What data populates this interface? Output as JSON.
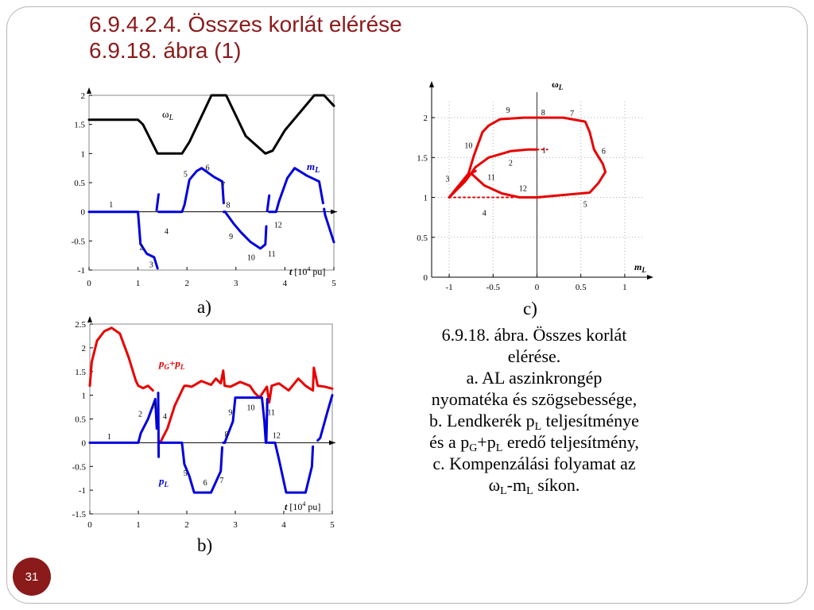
{
  "slide": {
    "title_line1": "6.9.4.2.4. Összes korlát elérése",
    "title_line2": "6.9.18. ábra (1)",
    "page_number": "31"
  },
  "caption": {
    "line1": "6.9.18. ábra. Összes korlát",
    "line2": "elérése.",
    "line3": "a. AL aszinkrongép",
    "line4": "nyomatéka és szögsebessége,",
    "line5_pre": "b. Lendkerék p",
    "line5_sub": "L",
    "line5_post": " teljesítménye",
    "line6_a": "és a p",
    "line6_sub1": "G",
    "line6_b": "+p",
    "line6_sub2": "L",
    "line6_c": " eredő teljesítmény,",
    "line7": "c. Kompenzálási folyamat az",
    "line8_a": "ω",
    "line8_sub1": "L",
    "line8_b": "-m",
    "line8_sub2": "L",
    "line8_c": " síkon."
  },
  "panel_labels": {
    "a": "a)",
    "b": "b)",
    "c": "c)"
  },
  "colors": {
    "accent": "#8b1a1a",
    "blue": "#0000dd",
    "red": "#e80000",
    "black": "#000000"
  },
  "chart_data": [
    {
      "id": "a",
      "type": "line",
      "xlim": [
        0,
        5
      ],
      "ylim": [
        -1,
        2
      ],
      "xticks": [
        0,
        1,
        2,
        3,
        4,
        5
      ],
      "yticks": [
        -1,
        -0.5,
        0,
        0.5,
        1,
        1.5,
        2
      ],
      "xlabel": {
        "main": "t",
        "unit": "[10",
        "sup": "4",
        "unit_end": " pu]"
      },
      "series": [
        {
          "name": "ωL",
          "label_main": "ω",
          "label_sub": "L",
          "color": "#000000",
          "x": [
            0,
            0.55,
            1.0,
            1.1,
            1.4,
            1.9,
            2.05,
            2.5,
            2.8,
            3.2,
            3.6,
            3.75,
            4.0,
            4.6,
            4.8,
            5.0
          ],
          "y": [
            1.58,
            1.58,
            1.58,
            1.5,
            1.0,
            1.0,
            1.2,
            2.0,
            2.0,
            1.3,
            1.0,
            1.05,
            1.4,
            2.0,
            2.0,
            1.82
          ]
        },
        {
          "name": "mL",
          "label_main": "m",
          "label_sub": "L",
          "color": "#0000dd",
          "segments": [
            {
              "x": [
                0,
                0.98
              ],
              "y": [
                0,
                0
              ]
            },
            {
              "x": [
                1.0,
                1.05,
                1.18,
                1.33,
                1.4
              ],
              "y": [
                0,
                -0.55,
                -0.72,
                -0.78,
                -0.97
              ]
            },
            {
              "x": [
                1.38,
                1.42
              ],
              "y": [
                0.03,
                0.3
              ]
            },
            {
              "x": [
                1.42,
                1.9,
                1.95,
                2.05,
                2.2,
                2.3,
                2.55,
                2.72,
                2.75
              ],
              "y": [
                0,
                0,
                0.12,
                0.55,
                0.7,
                0.75,
                0.6,
                0.52,
                0.15
              ]
            },
            {
              "x": [
                2.75,
                2.78
              ],
              "y": [
                0,
                0
              ]
            },
            {
              "x": [
                2.78,
                2.95,
                3.1,
                3.3,
                3.5,
                3.6,
                3.62
              ],
              "y": [
                0,
                -0.2,
                -0.35,
                -0.52,
                -0.63,
                -0.56,
                -0.25
              ]
            },
            {
              "x": [
                3.64,
                3.68
              ],
              "y": [
                0.02,
                0.28
              ]
            },
            {
              "x": [
                3.68,
                3.82,
                3.88,
                4.05,
                4.2,
                4.45,
                4.7,
                4.78
              ],
              "y": [
                0,
                0,
                0.18,
                0.58,
                0.75,
                0.62,
                0.52,
                0.15
              ]
            },
            {
              "x": [
                4.8,
                4.82
              ],
              "y": [
                0.05,
                -0.05
              ]
            },
            {
              "x": [
                4.82,
                5.0
              ],
              "y": [
                -0.05,
                -0.52
              ]
            }
          ]
        }
      ],
      "annotations": [
        {
          "text": "1",
          "x": 0.45,
          "y": 0.08
        },
        {
          "text": "2",
          "x": 1.07,
          "y": -0.65
        },
        {
          "text": "3",
          "x": 1.27,
          "y": -0.95
        },
        {
          "text": "4",
          "x": 1.58,
          "y": -0.38
        },
        {
          "text": "5",
          "x": 1.97,
          "y": 0.6
        },
        {
          "text": "6",
          "x": 2.42,
          "y": 0.71
        },
        {
          "text": "7",
          "x": 2.74,
          "y": 0.42
        },
        {
          "text": "8",
          "x": 2.84,
          "y": 0.07
        },
        {
          "text": "9",
          "x": 2.9,
          "y": -0.47
        },
        {
          "text": "10",
          "x": 3.31,
          "y": -0.83
        },
        {
          "text": "11",
          "x": 3.73,
          "y": -0.77
        },
        {
          "text": "12",
          "x": 3.86,
          "y": -0.27
        }
      ]
    },
    {
      "id": "b",
      "type": "line",
      "xlim": [
        0,
        5
      ],
      "ylim": [
        -1.5,
        2.5
      ],
      "xticks": [
        0,
        1,
        2,
        3,
        4,
        5
      ],
      "yticks": [
        -1.5,
        -1,
        -0.5,
        0,
        0.5,
        1,
        1.5,
        2,
        2.5
      ],
      "xlabel": {
        "main": "t",
        "unit": "[10",
        "sup": "4",
        "unit_end": " pu]"
      },
      "series": [
        {
          "name": "pG+pL",
          "label_main": "p",
          "label_sub": "G",
          "label_mid": "+p",
          "label_sub2": "L",
          "color": "#e80000",
          "segments": [
            {
              "x": [
                0,
                0.04,
                0.15,
                0.3,
                0.45,
                0.62,
                0.8,
                0.95,
                1.0,
                1.1,
                1.2,
                1.3
              ],
              "y": [
                1.2,
                1.7,
                2.15,
                2.35,
                2.42,
                2.3,
                1.8,
                1.3,
                1.2,
                1.15,
                1.2,
                1.1
              ]
            },
            {
              "x": [
                1.45,
                1.6,
                1.75,
                1.9,
                1.95,
                2.0,
                2.1,
                2.3,
                2.5,
                2.6,
                2.7,
                2.75,
                2.78,
                2.9,
                3.1,
                3.3,
                3.4,
                3.5,
                3.65,
                3.7,
                3.75,
                3.9,
                4.1,
                4.3,
                4.45,
                4.6,
                4.62,
                4.7,
                4.85,
                5.0
              ],
              "y": [
                0,
                0.3,
                0.78,
                1.1,
                1.2,
                1.2,
                1.18,
                1.3,
                1.22,
                1.35,
                1.25,
                1.52,
                1.2,
                1.18,
                1.28,
                1.2,
                1.05,
                0.95,
                1.18,
                0.85,
                1.2,
                1.25,
                1.1,
                1.35,
                1.2,
                1.1,
                1.58,
                1.2,
                1.18,
                1.14
              ]
            }
          ]
        },
        {
          "name": "pL",
          "label_main": "p",
          "label_sub": "L",
          "color": "#0000dd",
          "segments": [
            {
              "x": [
                0,
                0.98
              ],
              "y": [
                0,
                0
              ]
            },
            {
              "x": [
                1.0,
                1.05,
                1.2,
                1.35,
                1.38
              ],
              "y": [
                0,
                0.2,
                0.5,
                0.92,
                0.3
              ]
            },
            {
              "x": [
                1.41,
                1.42
              ],
              "y": [
                1.05,
                -0.3
              ]
            },
            {
              "x": [
                1.42,
                1.9,
                1.95,
                2.05,
                2.15,
                2.35,
                2.5,
                2.7,
                2.73
              ],
              "y": [
                0,
                0,
                -0.45,
                -0.7,
                -1.05,
                -1.05,
                -1.05,
                -0.6,
                -0.1
              ]
            },
            {
              "x": [
                2.75,
                2.78
              ],
              "y": [
                0,
                0
              ]
            },
            {
              "x": [
                2.78,
                2.95,
                3.0,
                3.2,
                3.4,
                3.55,
                3.6,
                3.63
              ],
              "y": [
                0,
                0.45,
                0.95,
                0.95,
                0.95,
                0.95,
                0.45,
                0
              ]
            },
            {
              "x": [
                3.64,
                3.66
              ],
              "y": [
                0,
                0.92
              ]
            },
            {
              "x": [
                3.68,
                3.82,
                3.9,
                4.05,
                4.25,
                4.45,
                4.58,
                4.6
              ],
              "y": [
                0,
                0,
                -0.35,
                -1.05,
                -1.05,
                -1.05,
                -0.5,
                -0.08
              ]
            },
            {
              "x": [
                4.7,
                4.75,
                4.9,
                5.0
              ],
              "y": [
                0.05,
                0.1,
                0.65,
                1.0
              ]
            }
          ]
        }
      ],
      "annotations": [
        {
          "text": "1",
          "x": 0.4,
          "y": 0.07
        },
        {
          "text": "2",
          "x": 1.04,
          "y": 0.55
        },
        {
          "text": "3",
          "x": 1.33,
          "y": 0.73
        },
        {
          "text": "4",
          "x": 1.55,
          "y": 0.5
        },
        {
          "text": "5",
          "x": 1.97,
          "y": -0.7
        },
        {
          "text": "6",
          "x": 2.38,
          "y": -0.9
        },
        {
          "text": "7",
          "x": 2.72,
          "y": -0.85
        },
        {
          "text": "8",
          "x": 2.82,
          "y": 0.12
        },
        {
          "text": "9",
          "x": 2.9,
          "y": 0.58
        },
        {
          "text": "10",
          "x": 3.32,
          "y": 0.68
        },
        {
          "text": "11",
          "x": 3.74,
          "y": 0.58
        },
        {
          "text": "12",
          "x": 3.85,
          "y": 0.1
        }
      ]
    },
    {
      "id": "c",
      "type": "line",
      "xlim": [
        -1.2,
        1.2
      ],
      "ylim": [
        0,
        2.2
      ],
      "xticks": [
        -1,
        -0.5,
        0,
        0.5,
        1
      ],
      "yticks": [
        0,
        0.5,
        1,
        1.5,
        2
      ],
      "grid": "dotted",
      "xlabel": {
        "main": "m",
        "sub": "L"
      },
      "ylabel": {
        "main": "ω",
        "sub": "L"
      },
      "series": [
        {
          "name": "trajectory",
          "color": "#e80000",
          "segments": [
            {
              "x": [
                -1.0,
                -0.78,
                -0.72,
                -0.62,
                -0.55,
                -0.42,
                -0.15,
                0.0
              ],
              "y": [
                1.0,
                1.3,
                1.52,
                1.82,
                1.9,
                1.98,
                2.0,
                2.0
              ]
            },
            {
              "x": [
                0.0,
                0.3,
                0.55,
                0.6,
                0.65,
                0.75,
                0.78,
                0.7,
                0.6,
                0.3,
                0.0
              ],
              "y": [
                2.0,
                2.0,
                1.95,
                1.82,
                1.6,
                1.42,
                1.32,
                1.18,
                1.06,
                1.03,
                1.0
              ]
            },
            {
              "x": [
                -1.0,
                -0.82,
                -0.75,
                -0.72,
                -0.7
              ],
              "y": [
                1.0,
                1.2,
                1.3,
                1.32,
                1.33
              ]
            },
            {
              "x": [
                -0.75,
                -0.7,
                -0.55,
                -0.3,
                -0.1,
                0.0
              ],
              "y": [
                1.3,
                1.38,
                1.5,
                1.58,
                1.6,
                1.6
              ]
            },
            {
              "x": [
                -0.75,
                -0.6,
                -0.4,
                -0.2,
                0.0
              ],
              "y": [
                1.3,
                1.15,
                1.05,
                1.0,
                1.0
              ]
            }
          ]
        },
        {
          "name": "dotted",
          "color": "#e80000",
          "style": "dotted",
          "segments": [
            {
              "x": [
                -1.0,
                -0.25
              ],
              "y": [
                1.0,
                1.0
              ]
            },
            {
              "x": [
                0.0,
                0.12
              ],
              "y": [
                1.6,
                1.6
              ]
            }
          ]
        }
      ],
      "annotations": [
        {
          "text": "1",
          "x": 0.08,
          "y": 1.56
        },
        {
          "text": "2",
          "x": -0.3,
          "y": 1.4
        },
        {
          "text": "3",
          "x": -1.02,
          "y": 1.2
        },
        {
          "text": "4",
          "x": -0.6,
          "y": 0.77
        },
        {
          "text": "5",
          "x": 0.55,
          "y": 0.88
        },
        {
          "text": "6",
          "x": 0.76,
          "y": 1.55
        },
        {
          "text": "7",
          "x": 0.4,
          "y": 2.02
        },
        {
          "text": "8",
          "x": 0.07,
          "y": 2.03
        },
        {
          "text": "9",
          "x": -0.33,
          "y": 2.06
        },
        {
          "text": "10",
          "x": -0.78,
          "y": 1.62
        },
        {
          "text": "11",
          "x": -0.52,
          "y": 1.22
        },
        {
          "text": "12",
          "x": -0.16,
          "y": 1.08
        }
      ]
    }
  ]
}
